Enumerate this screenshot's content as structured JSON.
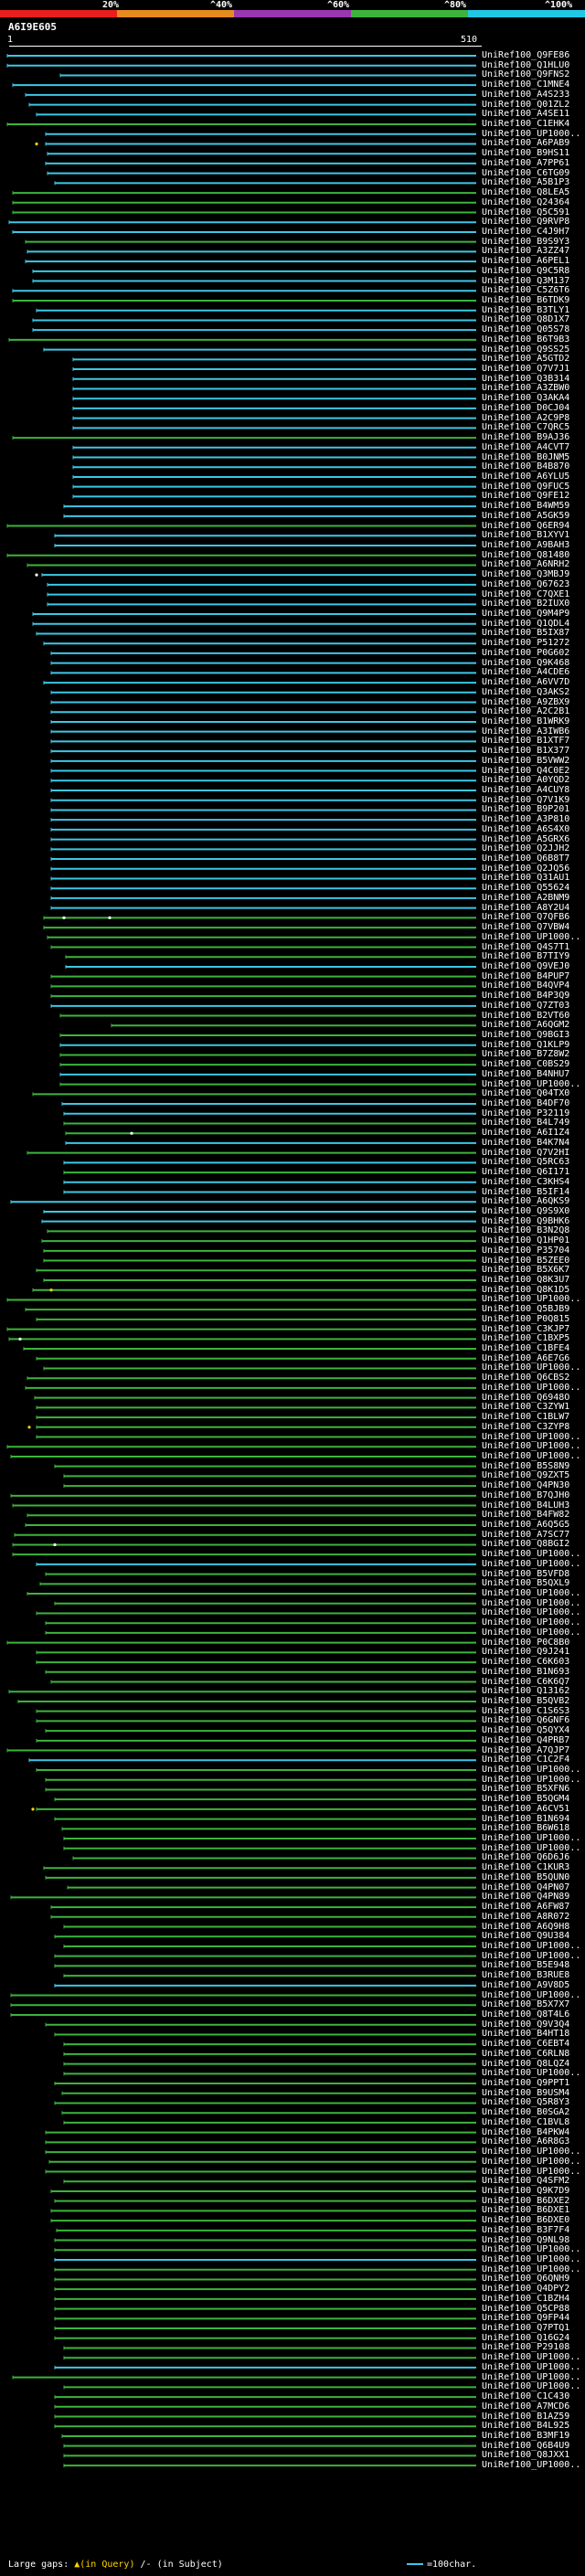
{
  "colorbar": {
    "labels": [
      "20%",
      "^40%",
      "^60%",
      "^80%",
      "^100%"
    ],
    "colors": [
      "#e61e1e",
      "#e68c1e",
      "#9b36b0",
      "#3cb43c",
      "#20c8e6"
    ]
  },
  "query": {
    "id": "A6I9E605",
    "range_start": "1",
    "range_end": "510"
  },
  "hit_labels": [
    "UniRef100_Q9FE86",
    "UniRef100_Q1HLU0",
    "UniRef100_Q9FNS2",
    "UniRef100_C1MNE4",
    "UniRef100_A4S233",
    "UniRef100_Q01ZL2",
    "UniRef100_A4SE11",
    "UniRef100_C1EHK4",
    "UniRef100_UP1000..",
    "UniRef100_A6PAB9",
    "UniRef100_B9HS11",
    "UniRef100_A7PP61",
    "UniRef100_C6TG09",
    "UniRef100_A5B1P3",
    "UniRef100_Q8LEA5",
    "UniRef100_Q24364",
    "UniRef100_Q5C591",
    "UniRef100_Q9RVP8",
    "UniRef100_C4J9H7",
    "UniRef100_B9S9Y3",
    "UniRef100_A3ZZ47",
    "UniRef100_A6PEL1",
    "UniRef100_Q9C5R8",
    "UniRef100_Q3M137",
    "UniRef100_C5Z6T6",
    "UniRef100_B6TDK9",
    "UniRef100_B3TLY1",
    "UniRef100_Q8D1X7",
    "UniRef100_Q05S78",
    "UniRef100_B6T9B3",
    "UniRef100_Q9SS25",
    "UniRef100_A5GTD2",
    "UniRef100_Q7V7J1",
    "UniRef100_Q3B314",
    "UniRef100_A3ZBW0",
    "UniRef100_Q3AKA4",
    "UniRef100_D0CJ04",
    "UniRef100_A2C9P8",
    "UniRef100_C7QRC5",
    "UniRef100_B9AJ36",
    "UniRef100_A4CVT7",
    "UniRef100_B0JNM5",
    "UniRef100_B4B870",
    "UniRef100_A6YLU5",
    "UniRef100_Q9FUC5",
    "UniRef100_Q9FE12",
    "UniRef100_B4WM59",
    "UniRef100_A5GK59",
    "UniRef100_Q6ER94",
    "UniRef100_B1XYV1",
    "UniRef100_A9BAH3",
    "UniRef100_Q81480",
    "UniRef100_A6NRH2",
    "UniRef100_Q3MBJ9",
    "UniRef100_Q67623",
    "UniRef100_C7QXE1",
    "UniRef100_B2IUX0",
    "UniRef100_Q9M4P9",
    "UniRef100_Q1QDL4",
    "UniRef100_B5IX87",
    "UniRef100_P51272",
    "UniRef100_P0G602",
    "UniRef100_Q9K468",
    "UniRef100_A4CDE6",
    "UniRef100_A6VV7D",
    "UniRef100_Q3AKS2",
    "UniRef100_A9ZBX9",
    "UniRef100_A2C2B1",
    "UniRef100_B1WRK9",
    "UniRef100_A3IWB6",
    "UniRef100_B1XTF7",
    "UniRef100_B1X377",
    "UniRef100_B5VWW2",
    "UniRef100_Q4C0E2",
    "UniRef100_A0YQD2",
    "UniRef100_A4CUY8",
    "UniRef100_Q7V1K9",
    "UniRef100_B9P201",
    "UniRef100_A3P810",
    "UniRef100_A6S4X0",
    "UniRef100_A5GRX6",
    "UniRef100_Q2JJH2",
    "UniRef100_Q6B8T7",
    "UniRef100_Q2JQ56",
    "UniRef100_Q31AU1",
    "UniRef100_Q55624",
    "UniRef100_A2BNM9",
    "UniRef100_A8Y2U4",
    "UniRef100_Q7QFB6",
    "UniRef100_Q7VBW4",
    "UniRef100_UP1000..",
    "UniRef100_Q4S7T1",
    "UniRef100_B7TIY9",
    "UniRef100_Q9VEJ0",
    "UniRef100_B4PUP7",
    "UniRef100_B4QVP4",
    "UniRef100_B4P3Q9",
    "UniRef100_Q7ZT03",
    "UniRef100_B2VT60",
    "UniRef100_A6QGM2",
    "UniRef100_Q9BGI3",
    "UniRef100_Q1KLP9",
    "UniRef100_B7Z8W2",
    "UniRef100_C0BS29",
    "UniRef100_B4NHU7",
    "UniRef100_UP1000..",
    "UniRef100_Q04TX0",
    "UniRef100_B4DF70",
    "UniRef100_P32119",
    "UniRef100_B4L749",
    "UniRef100_A6I1Z4",
    "UniRef100_B4K7N4",
    "UniRef100_Q7V2HI",
    "UniRef100_Q5RC63",
    "UniRef100_Q6I171",
    "UniRef100_C3KHS4",
    "UniRef100_B5IF14",
    "UniRef100_A6QKS9",
    "UniRef100_Q9S9X0",
    "UniRef100_Q9BHK6",
    "UniRef100_B3N2Q8",
    "UniRef100_Q1HP01",
    "UniRef100_P35704",
    "UniRef100_B5ZEE0",
    "UniRef100_B5X6K7",
    "UniRef100_Q8K3U7",
    "UniRef100_Q8K1D5",
    "UniRef100_UP1000..",
    "UniRef100_Q5BJB9",
    "UniRef100_P0Q815",
    "UniRef100_C3KJP7",
    "UniRef100_C1BXP5",
    "UniRef100_C1BFE4",
    "UniRef100_A6E7G6",
    "UniRef100_UP1000..",
    "UniRef100_Q6CBS2",
    "UniRef100_UP1000..",
    "UniRef100_Q6948O",
    "UniRef100_C3ZYW1",
    "UniRef100_C1BLW7",
    "UniRef100_C3ZYP8",
    "UniRef100_UP1000..",
    "UniRef100_UP1000..",
    "UniRef100_UP1000..",
    "UniRef100_B5S8N9",
    "UniRef100_Q9ZXT5",
    "UniRef100_Q4PN30",
    "UniRef100_B7QJH0",
    "UniRef100_B4LUH3",
    "UniRef100_B4FW82",
    "UniRef100_A6Q5G5",
    "UniRef100_A7SC77",
    "UniRef100_Q8BGI2",
    "UniRef100_UP1000..",
    "UniRef100_UP1000..",
    "UniRef100_B5VFD8",
    "UniRef100_B5QXL9",
    "UniRef100_UP1000..",
    "UniRef100_UP1000..",
    "UniRef100_UP1000..",
    "UniRef100_UP1000..",
    "UniRef100_UP1000..",
    "UniRef100_P0C8B0",
    "UniRef100_Q9J241",
    "UniRef100_C6K603",
    "UniRef100_B1N693",
    "UniRef100_C6K6Q7",
    "UniRef100_Q13162",
    "UniRef100_B5QVB2",
    "UniRef100_C1S6S3",
    "UniRef100_Q6GNF6",
    "UniRef100_Q5QYX4",
    "UniRef100_Q4PRB7",
    "UniRef100_A7QJP7",
    "UniRef100_C1C2F4",
    "UniRef100_UP1000..",
    "UniRef100_UP1000..",
    "UniRef100_B5XFN6",
    "UniRef100_B5QGM4",
    "UniRef100_A6CV51",
    "UniRef100_B1N694",
    "UniRef100_B6W618",
    "UniRef100_UP1000..",
    "UniRef100_UP1000..",
    "UniRef100_Q6D6J6",
    "UniRef100_C1KUR3",
    "UniRef100_B5QUN0",
    "UniRef100_Q4PN07",
    "UniRef100_Q4PN89",
    "UniRef100_A6FW87",
    "UniRef100_A8R072",
    "UniRef100_A6Q9H8",
    "UniRef100_Q9U384",
    "UniRef100_UP1000..",
    "UniRef100_UP1000..",
    "UniRef100_B5E948",
    "UniRef100_B3RUE8",
    "UniRef100_A9V8D5",
    "UniRef100_UP1000..",
    "UniRef100_B5X7X7",
    "UniRef100_Q8T4L6",
    "UniRef100_Q9V3Q4",
    "UniRef100_B4HT18",
    "UniRef100_C6EBT4",
    "UniRef100_C6RLN8",
    "UniRef100_Q8LQZ4",
    "UniRef100_UP1000..",
    "UniRef100_Q9PPT1",
    "UniRef100_B9USM4",
    "UniRef100_Q5R8Y3",
    "UniRef100_B0SGA2",
    "UniRef100_C1BVL8",
    "UniRef100_B4PKW4",
    "UniRef100_A6R8G3",
    "UniRef100_UP1000..",
    "UniRef100_UP1000..",
    "UniRef100_UP1000..",
    "UniRef100_Q4SFM2",
    "UniRef100_Q9K7D9",
    "UniRef100_B6DXE2",
    "UniRef100_B6DXE1",
    "UniRef100_B6DXE0",
    "UniRef100_B3F7F4",
    "UniRef100_Q9NL98",
    "UniRef100_UP1000..",
    "UniRef100_UP1000..",
    "UniRef100_UP1000..",
    "UniRef100_Q6QNH9",
    "UniRef100_Q4DPY2",
    "UniRef100_C1BZH4",
    "UniRef100_Q5CP88",
    "UniRef100_Q9FP44",
    "UniRef100_Q7PTQ1",
    "UniRef100_Q16G24",
    "UniRef100_P29108",
    "UniRef100_UP1000..",
    "UniRef100_UP1000..",
    "UniRef100_UP1000..",
    "UniRef100_UP1000..",
    "UniRef100_C1C430",
    "UniRef100_A7MCD6",
    "UniRef100_B1AZ59",
    "UniRef100_B4L925",
    "UniRef100_B3MF19",
    "UniRef100_Q6B4U9",
    "UniRef100_Q8JXX1",
    "UniRef100_UP1000.."
  ],
  "colors": {
    "cyan": "#3cc8e6",
    "green": "#3cb43c",
    "gap_marker": "#ffd400"
  },
  "footer": {
    "text_prefix": "Large gaps: ",
    "query_gap": "▲(in Query)",
    "subject_gap": "/- (in Subject)",
    "scale": "=100char."
  }
}
